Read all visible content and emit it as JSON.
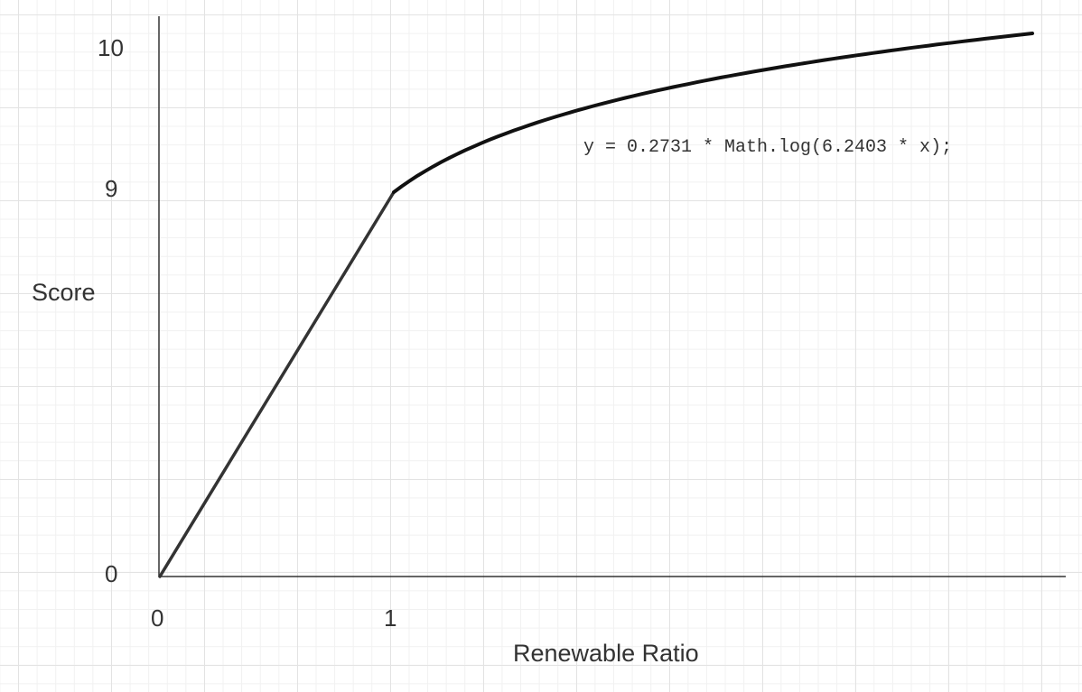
{
  "diagram": {
    "y_axis_label": "Score",
    "x_axis_label": "Renewable Ratio",
    "y_ticks": [
      "10",
      "9",
      "0"
    ],
    "x_ticks": [
      "0",
      "1"
    ],
    "equation": "y = 0.2731 * Math.log(6.2403 * x);"
  },
  "colors": {
    "axis": "#333333",
    "curve": "#111111",
    "grid_major": "#e3e3e3",
    "grid_minor": "#f1f1f1",
    "text": "#333333"
  }
}
